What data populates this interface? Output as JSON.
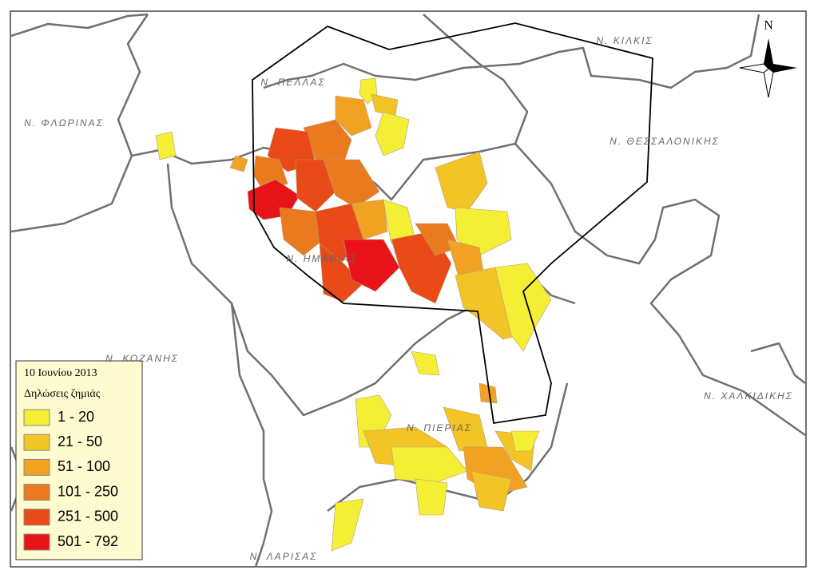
{
  "map": {
    "north": "N",
    "regions": [
      "Ν. ΠΕΛΛΑΣ",
      "Ν. ΚΙΛΚΙΣ",
      "Ν. ΦΛΩΡΙΝΑΣ",
      "Ν. ΘΕΣΣΑΛΟΝΙΚΗΣ",
      "Ν. ΗΜΑΘΙΑΣ",
      "Ν. ΚΟΖΑΝΗΣ",
      "Ν. ΧΑΛΚΙΔΙΚΗΣ",
      "Ν. ΠΙΕΡΙΑΣ",
      "Ν. ΛΑΡΙΣΑΣ"
    ],
    "legend": {
      "title": [
        "10 Ιουνίου 2013",
        "Δηλώσεις ζημιάς"
      ],
      "classes": [
        {
          "label": "1 - 20",
          "color": "#f4ef35"
        },
        {
          "label": "21 - 50",
          "color": "#f2c425"
        },
        {
          "label": "51 - 100",
          "color": "#f1a222"
        },
        {
          "label": "101 - 250",
          "color": "#ea7a1e"
        },
        {
          "label": "251 - 500",
          "color": "#e94a18"
        },
        {
          "label": "501 - 792",
          "color": "#e8141a"
        }
      ]
    }
  }
}
